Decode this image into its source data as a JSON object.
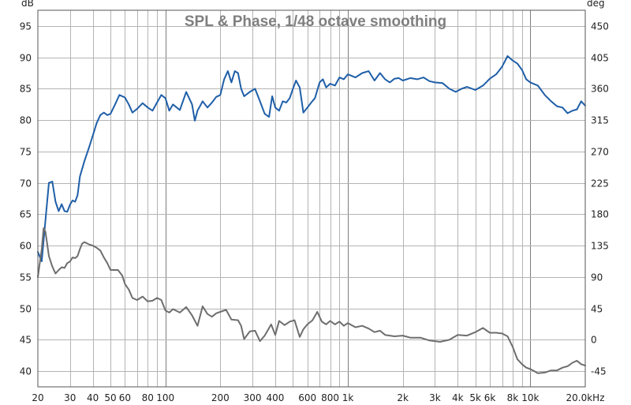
{
  "chart_data": {
    "type": "line",
    "title": "SPL & Phase, 1/48 octave smoothing",
    "left_unit": "dB",
    "right_unit": "deg",
    "x_scale": "log",
    "xlim": [
      20,
      20000
    ],
    "ylim_left": [
      37.5,
      97.5
    ],
    "ylim_right": [
      -67.5,
      472.5
    ],
    "left_ticks": [
      40,
      45,
      50,
      55,
      60,
      65,
      70,
      75,
      80,
      85,
      90,
      95
    ],
    "right_ticks": [
      -45,
      0,
      45,
      90,
      135,
      180,
      225,
      270,
      315,
      360,
      405,
      450
    ],
    "x_ticks": [
      {
        "value": 20,
        "label": "20"
      },
      {
        "value": 30,
        "label": "30"
      },
      {
        "value": 40,
        "label": "40"
      },
      {
        "value": 50,
        "label": "50"
      },
      {
        "value": 60,
        "label": "60"
      },
      {
        "value": 80,
        "label": "80"
      },
      {
        "value": 100,
        "label": "100"
      },
      {
        "value": 200,
        "label": "200"
      },
      {
        "value": 300,
        "label": "300"
      },
      {
        "value": 400,
        "label": "400"
      },
      {
        "value": 600,
        "label": "600"
      },
      {
        "value": 800,
        "label": "800"
      },
      {
        "value": 1000,
        "label": "1k"
      },
      {
        "value": 2000,
        "label": "2k"
      },
      {
        "value": 3000,
        "label": "3k"
      },
      {
        "value": 4000,
        "label": "4k"
      },
      {
        "value": 5000,
        "label": "5k"
      },
      {
        "value": 6000,
        "label": "6k"
      },
      {
        "value": 8000,
        "label": "8k"
      },
      {
        "value": 10000,
        "label": "10k"
      },
      {
        "value": 20000,
        "label": "20.0kHz"
      }
    ],
    "series": [
      {
        "name": "SPL",
        "axis": "left",
        "color": "#1f5fa8",
        "points": [
          [
            20,
            59
          ],
          [
            21,
            57.5
          ],
          [
            22,
            64
          ],
          [
            23,
            70
          ],
          [
            24,
            70.2
          ],
          [
            25,
            67
          ],
          [
            26,
            65.5
          ],
          [
            27,
            66.6
          ],
          [
            28,
            65.5
          ],
          [
            29,
            65.4
          ],
          [
            30,
            66.5
          ],
          [
            31,
            67.2
          ],
          [
            32,
            67
          ],
          [
            33,
            68
          ],
          [
            34,
            71
          ],
          [
            36,
            73.5
          ],
          [
            38,
            75.5
          ],
          [
            40,
            77.5
          ],
          [
            42,
            79.5
          ],
          [
            44,
            80.8
          ],
          [
            46,
            81.2
          ],
          [
            48,
            80.8
          ],
          [
            50,
            81
          ],
          [
            53,
            82.5
          ],
          [
            56,
            84
          ],
          [
            60,
            83.6
          ],
          [
            63,
            82.5
          ],
          [
            66,
            81.2
          ],
          [
            70,
            81.8
          ],
          [
            75,
            82.7
          ],
          [
            80,
            82
          ],
          [
            85,
            81.5
          ],
          [
            90,
            82.8
          ],
          [
            95,
            84
          ],
          [
            100,
            83.5
          ],
          [
            105,
            81.5
          ],
          [
            110,
            82.5
          ],
          [
            120,
            81.6
          ],
          [
            130,
            84.5
          ],
          [
            140,
            82.5
          ],
          [
            145,
            79.9
          ],
          [
            150,
            81.5
          ],
          [
            160,
            83
          ],
          [
            170,
            82
          ],
          [
            180,
            82.8
          ],
          [
            190,
            83.7
          ],
          [
            200,
            84
          ],
          [
            210,
            86.5
          ],
          [
            220,
            87.8
          ],
          [
            230,
            86
          ],
          [
            240,
            87.8
          ],
          [
            250,
            87.5
          ],
          [
            260,
            85
          ],
          [
            270,
            83.8
          ],
          [
            290,
            84.5
          ],
          [
            310,
            85
          ],
          [
            330,
            83
          ],
          [
            350,
            81
          ],
          [
            370,
            80.5
          ],
          [
            385,
            83.8
          ],
          [
            400,
            82
          ],
          [
            420,
            81.5
          ],
          [
            440,
            83
          ],
          [
            460,
            82.8
          ],
          [
            480,
            83.5
          ],
          [
            500,
            85
          ],
          [
            520,
            86.3
          ],
          [
            545,
            85.2
          ],
          [
            570,
            81.2
          ],
          [
            600,
            82
          ],
          [
            630,
            82.8
          ],
          [
            660,
            83.5
          ],
          [
            700,
            86
          ],
          [
            730,
            86.5
          ],
          [
            760,
            85.2
          ],
          [
            800,
            85.8
          ],
          [
            850,
            85.5
          ],
          [
            900,
            86.8
          ],
          [
            950,
            86.5
          ],
          [
            1000,
            87.3
          ],
          [
            1100,
            86.8
          ],
          [
            1200,
            87.5
          ],
          [
            1300,
            87.8
          ],
          [
            1400,
            86.3
          ],
          [
            1500,
            87.5
          ],
          [
            1600,
            86.5
          ],
          [
            1700,
            86
          ],
          [
            1800,
            86.6
          ],
          [
            1900,
            86.7
          ],
          [
            2000,
            86.3
          ],
          [
            2200,
            86.7
          ],
          [
            2400,
            86.5
          ],
          [
            2600,
            86.8
          ],
          [
            2800,
            86.2
          ],
          [
            3000,
            86
          ],
          [
            3300,
            85.9
          ],
          [
            3600,
            85
          ],
          [
            3900,
            84.5
          ],
          [
            4200,
            85
          ],
          [
            4500,
            85.3
          ],
          [
            5000,
            84.8
          ],
          [
            5500,
            85.5
          ],
          [
            6000,
            86.6
          ],
          [
            6500,
            87.3
          ],
          [
            7000,
            88.5
          ],
          [
            7500,
            90.2
          ],
          [
            8000,
            89.5
          ],
          [
            8500,
            89
          ],
          [
            9000,
            88
          ],
          [
            9500,
            86.5
          ],
          [
            10000,
            86
          ],
          [
            11000,
            85.5
          ],
          [
            12000,
            84
          ],
          [
            13000,
            83
          ],
          [
            14000,
            82.2
          ],
          [
            15000,
            82
          ],
          [
            16000,
            81.1
          ],
          [
            17000,
            81.5
          ],
          [
            18000,
            81.7
          ],
          [
            19000,
            83
          ],
          [
            20000,
            82.3
          ]
        ]
      },
      {
        "name": "Phase",
        "axis": "right",
        "color": "#6e6e6e",
        "points": [
          [
            20,
            90
          ],
          [
            21,
            130
          ],
          [
            21.5,
            160
          ],
          [
            22,
            155
          ],
          [
            23,
            120
          ],
          [
            24,
            105
          ],
          [
            25,
            95
          ],
          [
            26,
            100
          ],
          [
            27,
            104
          ],
          [
            28,
            103
          ],
          [
            29,
            110
          ],
          [
            30,
            112
          ],
          [
            31,
            118
          ],
          [
            32,
            117
          ],
          [
            33,
            120
          ],
          [
            34,
            130
          ],
          [
            35,
            138
          ],
          [
            36,
            140
          ],
          [
            38,
            137
          ],
          [
            40,
            135
          ],
          [
            42,
            132
          ],
          [
            44,
            128
          ],
          [
            46,
            118
          ],
          [
            48,
            110
          ],
          [
            50,
            100
          ],
          [
            55,
            100
          ],
          [
            58,
            92
          ],
          [
            60,
            80
          ],
          [
            63,
            72
          ],
          [
            66,
            60
          ],
          [
            70,
            57
          ],
          [
            75,
            62
          ],
          [
            80,
            55
          ],
          [
            85,
            56
          ],
          [
            90,
            60
          ],
          [
            95,
            57
          ],
          [
            100,
            42
          ],
          [
            105,
            39
          ],
          [
            110,
            44
          ],
          [
            120,
            39
          ],
          [
            130,
            47
          ],
          [
            140,
            35
          ],
          [
            150,
            20
          ],
          [
            160,
            48
          ],
          [
            170,
            37
          ],
          [
            180,
            33
          ],
          [
            190,
            38
          ],
          [
            200,
            40
          ],
          [
            215,
            43
          ],
          [
            230,
            29
          ],
          [
            250,
            28
          ],
          [
            260,
            20
          ],
          [
            270,
            1
          ],
          [
            290,
            12
          ],
          [
            310,
            13
          ],
          [
            330,
            -2
          ],
          [
            350,
            6
          ],
          [
            380,
            22
          ],
          [
            400,
            7
          ],
          [
            420,
            27
          ],
          [
            450,
            21
          ],
          [
            480,
            26
          ],
          [
            510,
            28
          ],
          [
            545,
            4
          ],
          [
            570,
            15
          ],
          [
            600,
            22
          ],
          [
            640,
            28
          ],
          [
            680,
            40
          ],
          [
            720,
            26
          ],
          [
            760,
            22
          ],
          [
            800,
            27
          ],
          [
            850,
            22
          ],
          [
            900,
            26
          ],
          [
            950,
            20
          ],
          [
            1000,
            24
          ],
          [
            1100,
            18
          ],
          [
            1200,
            20
          ],
          [
            1300,
            16
          ],
          [
            1400,
            11
          ],
          [
            1500,
            13
          ],
          [
            1600,
            7
          ],
          [
            1800,
            5
          ],
          [
            2000,
            6
          ],
          [
            2200,
            3
          ],
          [
            2500,
            3
          ],
          [
            2800,
            -1
          ],
          [
            3200,
            -3
          ],
          [
            3600,
            0
          ],
          [
            4000,
            7
          ],
          [
            4500,
            6
          ],
          [
            5000,
            11
          ],
          [
            5500,
            17
          ],
          [
            6000,
            10
          ],
          [
            6500,
            10
          ],
          [
            7000,
            9
          ],
          [
            7500,
            5
          ],
          [
            8000,
            -10
          ],
          [
            8500,
            -28
          ],
          [
            9000,
            -35
          ],
          [
            9500,
            -40
          ],
          [
            10000,
            -42
          ],
          [
            10500,
            -45
          ],
          [
            11000,
            -48
          ],
          [
            12000,
            -47
          ],
          [
            13000,
            -44
          ],
          [
            14000,
            -44
          ],
          [
            15000,
            -40
          ],
          [
            16000,
            -38
          ],
          [
            17000,
            -33
          ],
          [
            18000,
            -30
          ],
          [
            19000,
            -35
          ],
          [
            20000,
            -37
          ]
        ]
      }
    ]
  },
  "colors": {
    "background": "#ffffff",
    "plot_border": "#555555",
    "grid": "#b4b4b4",
    "grid_major": "#7d7d7d",
    "title": "#7f7f7f"
  }
}
